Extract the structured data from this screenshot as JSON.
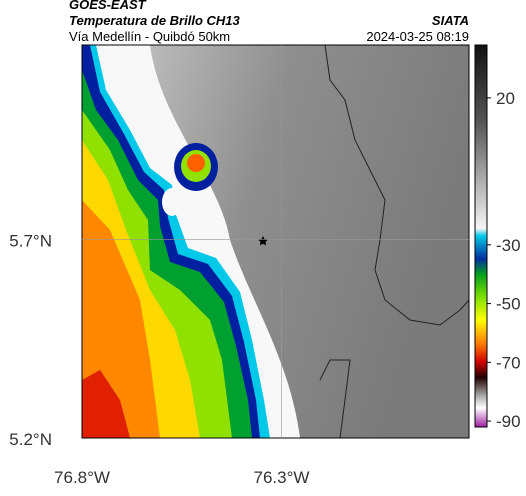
{
  "header": {
    "title": "GOES-EAST",
    "subtitle": "Temperatura de Brillo CH13",
    "location": "Vía Medellín - Quibdó 50km",
    "source": "SIATA",
    "datetime": "2024-03-25 08:19"
  },
  "map": {
    "xlim": [
      -76.8,
      -75.83
    ],
    "ylim": [
      5.2,
      6.19
    ],
    "xticks": [
      {
        "value": -76.8,
        "label": "76.8°W"
      },
      {
        "value": -76.3,
        "label": "76.3°W"
      }
    ],
    "yticks": [
      {
        "value": 5.7,
        "label": "5.7°N"
      },
      {
        "value": 5.2,
        "label": "5.2°N"
      }
    ]
  },
  "colorbar": {
    "lim": [
      -92,
      38
    ],
    "ticks": [
      20,
      -30,
      -50,
      -70,
      -90
    ]
  }
}
